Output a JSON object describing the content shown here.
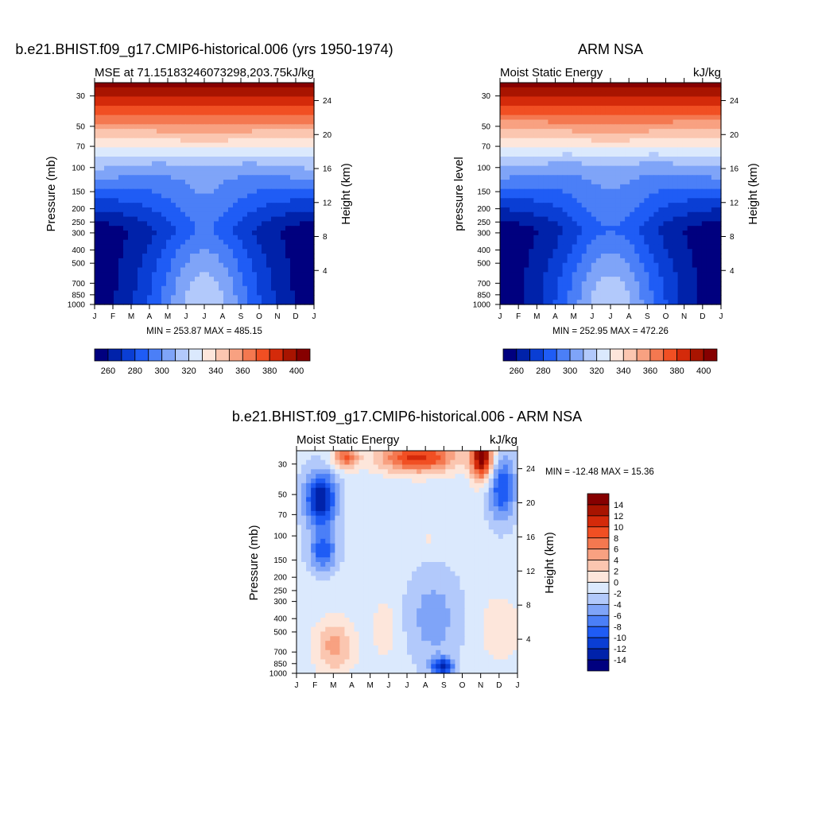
{
  "chart_data": [
    {
      "type": "contour",
      "title": "b.e21.BHIST.f09_g17.CMIP6-historical.006 (yrs 1950-1974)",
      "left_string": "MSE at 71.15183246073298,203.75",
      "right_string": "kJ/kg",
      "ylabel": "Pressure (mb)",
      "ylabel_right": "Height (km)",
      "x_ticks": [
        "J",
        "F",
        "M",
        "A",
        "M",
        "J",
        "J",
        "A",
        "S",
        "O",
        "N",
        "D",
        "J"
      ],
      "y_ticks": [
        "30",
        "50",
        "70",
        "100",
        "150",
        "200",
        "250",
        "300",
        "400",
        "500",
        "700",
        "850",
        "1000"
      ],
      "y_ticks_right": [
        "24",
        "20",
        "16",
        "12",
        "8",
        "4"
      ],
      "stats": "MIN = 253.87 MAX = 485.15",
      "surface": {
        "top": 405,
        "bottom": 253.87,
        "dip": 43,
        "deep": 22
      },
      "colorbar": {
        "orientation": "horizontal",
        "labels": [
          "260",
          "280",
          "300",
          "320",
          "340",
          "360",
          "380",
          "400"
        ],
        "colors": [
          "#00007f",
          "#0022aa",
          "#0a3ed4",
          "#1f5cf5",
          "#4b7ff7",
          "#7fa4f8",
          "#b2c9fb",
          "#dbe9fd",
          "#fde6db",
          "#fbc6b0",
          "#f8a181",
          "#f47850",
          "#f14f23",
          "#d42a0a",
          "#a81400",
          "#860000"
        ]
      }
    },
    {
      "type": "contour",
      "title": "ARM NSA",
      "left_string": "Moist Static Energy",
      "right_string": "kJ/kg",
      "ylabel": "pressure level",
      "ylabel_right": "Height (km)",
      "x_ticks": [
        "J",
        "F",
        "M",
        "A",
        "M",
        "J",
        "J",
        "A",
        "S",
        "O",
        "N",
        "D",
        "J"
      ],
      "y_ticks": [
        "30",
        "50",
        "70",
        "100",
        "150",
        "200",
        "250",
        "300",
        "400",
        "500",
        "700",
        "850",
        "1000"
      ],
      "y_ticks_right": [
        "24",
        "20",
        "16",
        "12",
        "8",
        "4"
      ],
      "stats": "MIN = 252.95 MAX = 472.26",
      "surface": {
        "top": 405,
        "bottom": 252.95,
        "dip": 43,
        "deep": 22
      },
      "colorbar": {
        "orientation": "horizontal",
        "labels": [
          "260",
          "280",
          "300",
          "320",
          "340",
          "360",
          "380",
          "400"
        ],
        "colors": [
          "#00007f",
          "#0022aa",
          "#0a3ed4",
          "#1f5cf5",
          "#4b7ff7",
          "#7fa4f8",
          "#b2c9fb",
          "#dbe9fd",
          "#fde6db",
          "#fbc6b0",
          "#f8a181",
          "#f47850",
          "#f14f23",
          "#d42a0a",
          "#a81400",
          "#860000"
        ]
      }
    },
    {
      "type": "contour",
      "title": "b.e21.BHIST.f09_g17.CMIP6-historical.006 - ARM NSA",
      "left_string": "Moist Static Energy",
      "right_string": "kJ/kg",
      "ylabel": "Pressure (mb)",
      "ylabel_right": "Height (km)",
      "x_ticks": [
        "J",
        "F",
        "M",
        "A",
        "M",
        "J",
        "J",
        "A",
        "S",
        "O",
        "N",
        "D",
        "J"
      ],
      "y_ticks": [
        "30",
        "50",
        "70",
        "100",
        "150",
        "200",
        "250",
        "300",
        "400",
        "500",
        "700",
        "850",
        "1000"
      ],
      "y_ticks_right": [
        "24",
        "20",
        "16",
        "12",
        "8",
        "4"
      ],
      "stats": "MIN = -12.48 MAX =  15.36",
      "colorbar": {
        "orientation": "vertical",
        "labels": [
          "14",
          "12",
          "10",
          "8",
          "6",
          "4",
          "2",
          "0",
          "-2",
          "-4",
          "-6",
          "-8",
          "-10",
          "-12",
          "-14"
        ],
        "colors": [
          "#860000",
          "#a81400",
          "#d42a0a",
          "#f14f23",
          "#f47850",
          "#f8a181",
          "#fbc6b0",
          "#fde6db",
          "#dbe9fd",
          "#b2c9fb",
          "#7fa4f8",
          "#4b7ff7",
          "#1f5cf5",
          "#0a3ed4",
          "#0022aa",
          "#00007f"
        ]
      }
    }
  ]
}
